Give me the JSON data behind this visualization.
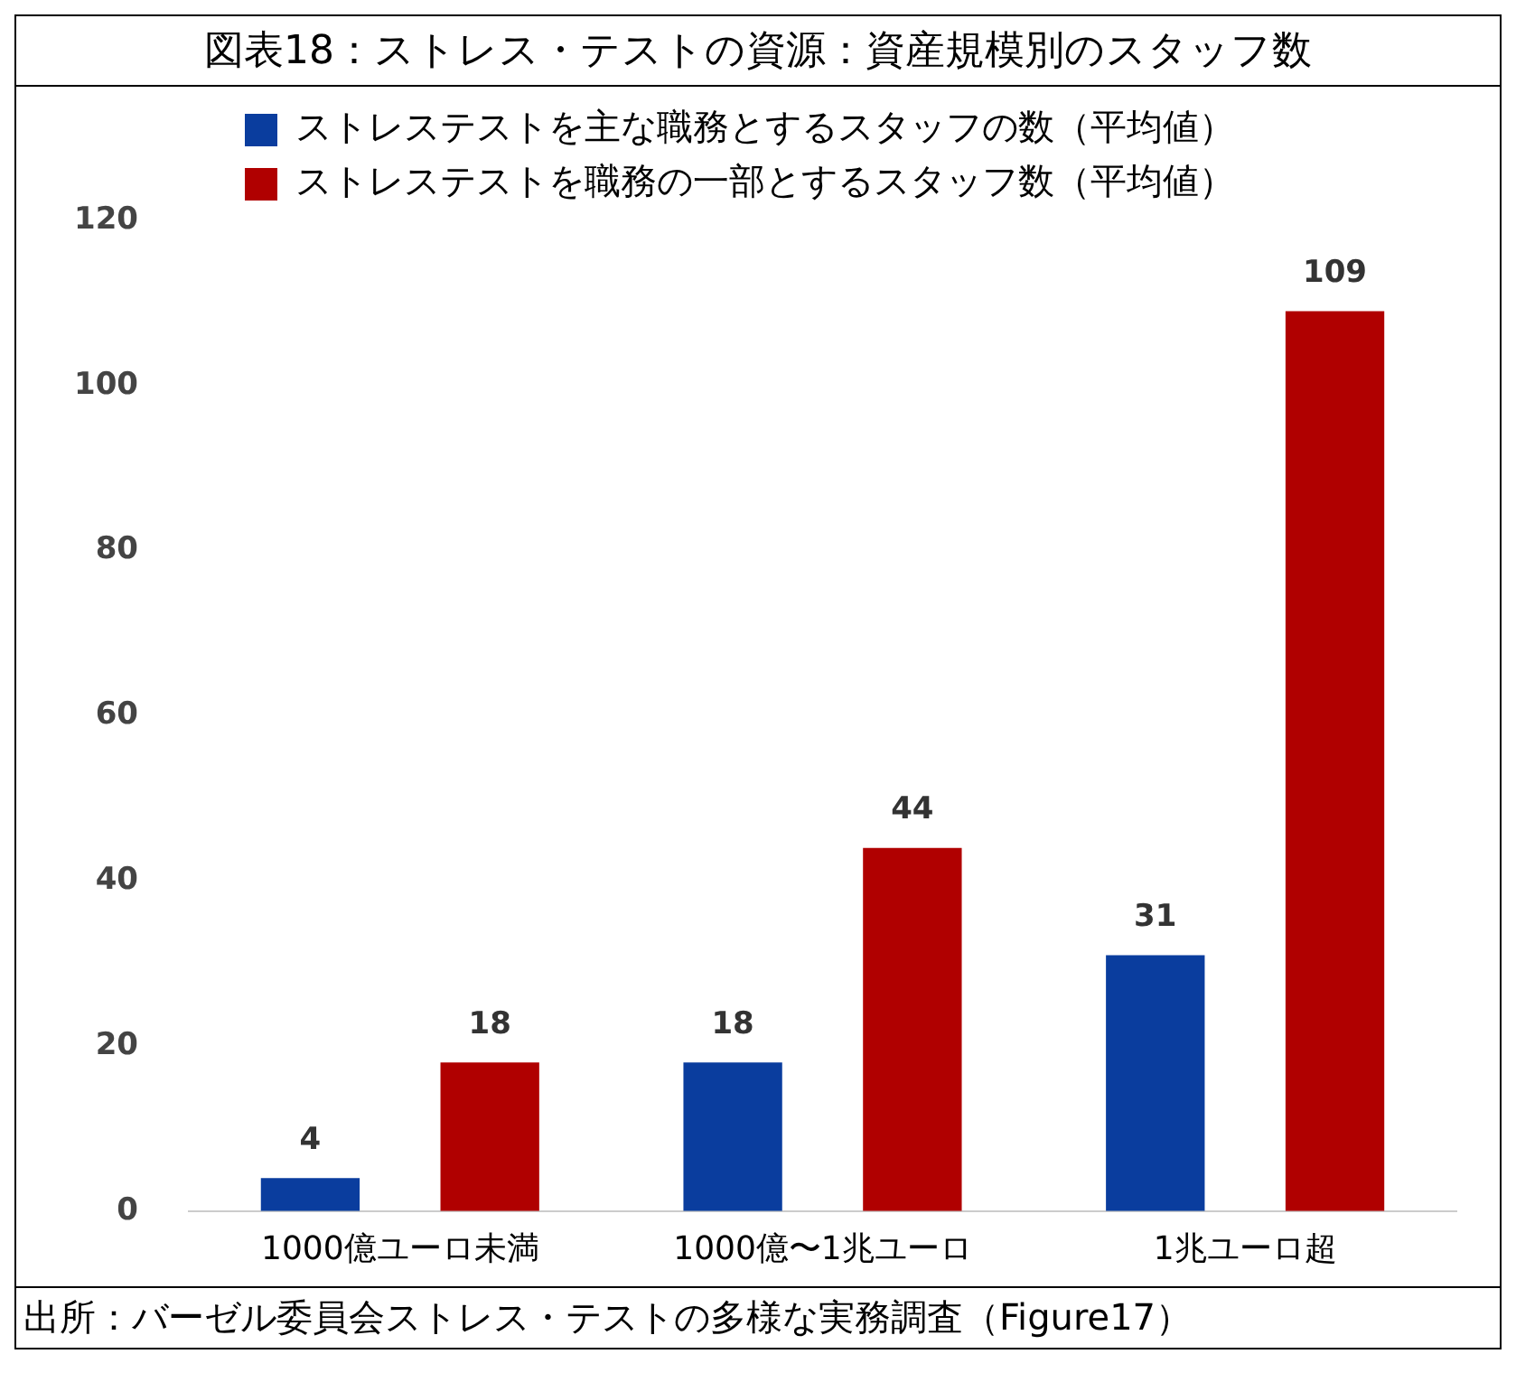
{
  "chart_data": {
    "type": "bar",
    "title": "図表18：ストレス・テストの資源：資産規模別のスタッフ数",
    "categories": [
      "1000億ユーロ未満",
      "1000億〜1兆ユーロ",
      "1兆ユーロ超"
    ],
    "series": [
      {
        "name": "ストレステストを主な職務とするスタッフの数（平均値）",
        "color": "#0a3d9e",
        "values": [
          4,
          18,
          31
        ]
      },
      {
        "name": "ストレステストを職務の一部とするスタッフ数（平均値）",
        "color": "#b00000",
        "values": [
          18,
          44,
          109
        ]
      }
    ],
    "ylim": [
      0,
      120
    ],
    "yticks": [
      0,
      20,
      40,
      60,
      80,
      100,
      120
    ],
    "grid": false,
    "legend": "top",
    "data_labels": true,
    "annotations": [
      "出所：バーゼル委員会ストレス・テストの多様な実務調査（Figure17）"
    ]
  }
}
